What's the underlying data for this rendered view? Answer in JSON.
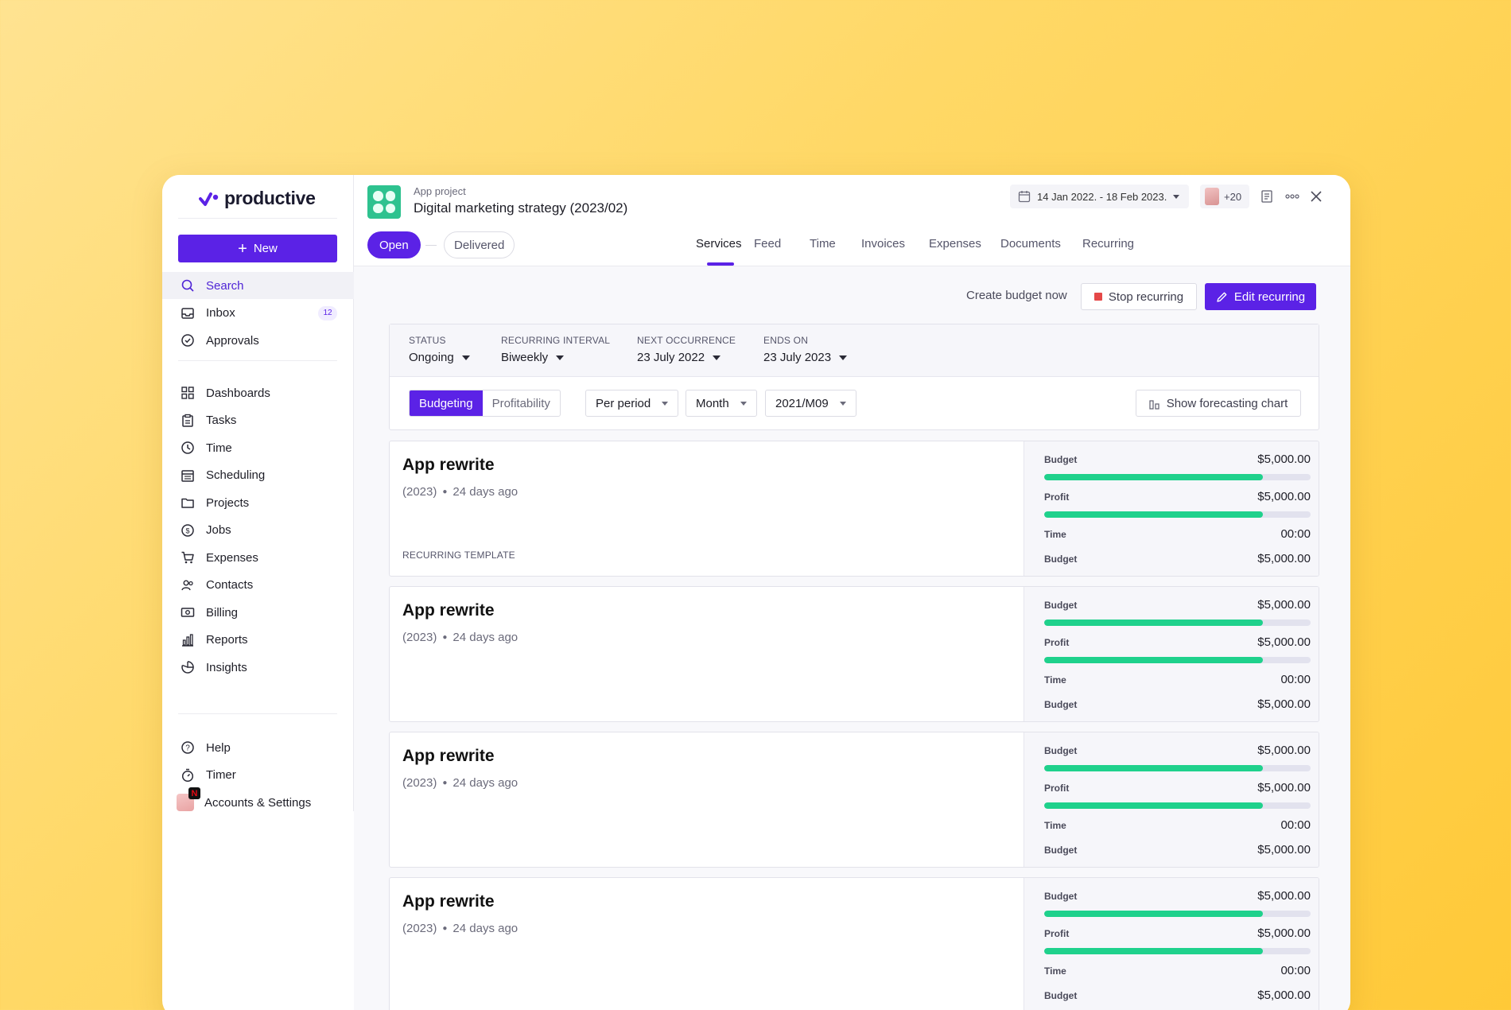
{
  "app": {
    "brand": "productive",
    "accent": "#5b22e6"
  },
  "sidebar": {
    "new_label": "New",
    "items_top": [
      {
        "label": "Search",
        "icon": "search-icon",
        "active": true
      },
      {
        "label": "Inbox",
        "icon": "inbox-icon",
        "badge": "12"
      },
      {
        "label": "Approvals",
        "icon": "check-circle-icon"
      }
    ],
    "items_main": [
      {
        "label": "Dashboards",
        "icon": "grid-icon"
      },
      {
        "label": "Tasks",
        "icon": "clipboard-icon"
      },
      {
        "label": "Time",
        "icon": "clock-icon"
      },
      {
        "label": "Scheduling",
        "icon": "calendar-icon"
      },
      {
        "label": "Projects",
        "icon": "folder-icon"
      },
      {
        "label": "Jobs",
        "icon": "dollar-icon"
      },
      {
        "label": "Expenses",
        "icon": "cart-icon"
      },
      {
        "label": "Contacts",
        "icon": "contacts-icon"
      },
      {
        "label": "Billing",
        "icon": "money-icon"
      },
      {
        "label": "Reports",
        "icon": "chart-icon"
      },
      {
        "label": "Insights",
        "icon": "pie-icon"
      }
    ],
    "items_bottom": [
      {
        "label": "Help",
        "icon": "help-icon"
      },
      {
        "label": "Timer",
        "icon": "timer-icon"
      },
      {
        "label": "Accounts & Settings",
        "icon": "avatar"
      }
    ]
  },
  "header": {
    "subtitle": "App project",
    "title": "Digital marketing strategy (2023/02)",
    "date_range": "14 Jan 2022. - 18 Feb 2023.",
    "people_count": "+20",
    "status_open": "Open",
    "status_delivered": "Delivered",
    "tabs": [
      "Services",
      "Feed",
      "Time",
      "Invoices",
      "Expenses",
      "Documents",
      "Recurring"
    ],
    "active_tab": "Services"
  },
  "actions": {
    "create_budget": "Create budget now",
    "stop_recurring": "Stop recurring",
    "edit_recurring": "Edit recurring"
  },
  "filters": {
    "meta": [
      {
        "label": "STATUS",
        "value": "Ongoing"
      },
      {
        "label": "RECURRING INTERVAL",
        "value": "Biweekly"
      },
      {
        "label": "NEXT OCCURRENCE",
        "value": "23 July 2022"
      },
      {
        "label": "ENDS ON",
        "value": "23 July 2023"
      }
    ],
    "view_toggle": [
      "Budgeting",
      "Profitability"
    ],
    "active_view": "Budgeting",
    "period": "Per period",
    "granularity": "Month",
    "selected_period": "2021/M09",
    "forecast_label": "Show forecasting chart"
  },
  "services": [
    {
      "title": "App rewrite",
      "year": "(2023)",
      "ago": "24 days ago",
      "tag": "RECURRING TEMPLATE",
      "stats": {
        "budget_label": "Budget",
        "budget": "$5,000.00",
        "budget_fill": 0.82,
        "profit_label": "Profit",
        "profit": "$5,000.00",
        "profit_fill": 0.82,
        "time_label": "Time",
        "time": "00:00",
        "budget2_label": "Budget",
        "budget2": "$5,000.00"
      }
    },
    {
      "title": "App rewrite",
      "year": "(2023)",
      "ago": "24 days ago",
      "tag": "",
      "stats": {
        "budget_label": "Budget",
        "budget": "$5,000.00",
        "budget_fill": 0.82,
        "profit_label": "Profit",
        "profit": "$5,000.00",
        "profit_fill": 0.82,
        "time_label": "Time",
        "time": "00:00",
        "budget2_label": "Budget",
        "budget2": "$5,000.00"
      }
    },
    {
      "title": "App rewrite",
      "year": "(2023)",
      "ago": "24 days ago",
      "tag": "",
      "stats": {
        "budget_label": "Budget",
        "budget": "$5,000.00",
        "budget_fill": 0.82,
        "profit_label": "Profit",
        "profit": "$5,000.00",
        "profit_fill": 0.82,
        "time_label": "Time",
        "time": "00:00",
        "budget2_label": "Budget",
        "budget2": "$5,000.00"
      }
    },
    {
      "title": "App rewrite",
      "year": "(2023)",
      "ago": "24 days ago",
      "tag": "",
      "stats": {
        "budget_label": "Budget",
        "budget": "$5,000.00",
        "budget_fill": 0.82,
        "profit_label": "Profit",
        "profit": "$5,000.00",
        "profit_fill": 0.82,
        "time_label": "Time",
        "time": "00:00",
        "budget2_label": "Budget",
        "budget2": "$5,000.00"
      }
    }
  ]
}
